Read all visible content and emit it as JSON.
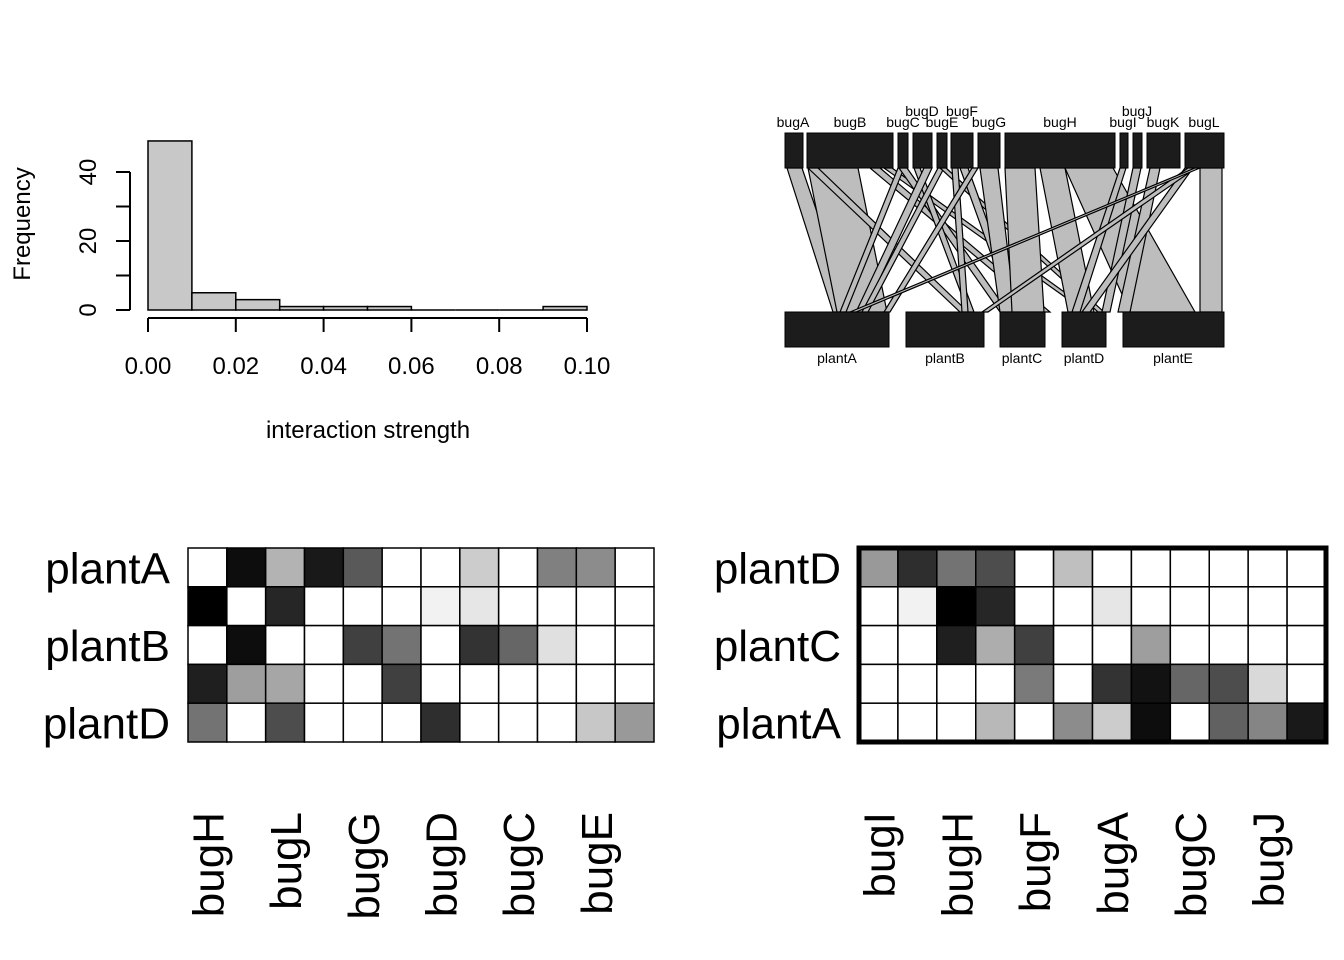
{
  "chart_data": [
    {
      "type": "bar",
      "subtype": "histogram",
      "xlabel": "interaction strength",
      "ylabel": "Frequency",
      "bins": [
        [
          0.0,
          0.01
        ],
        [
          0.01,
          0.02
        ],
        [
          0.02,
          0.03
        ],
        [
          0.03,
          0.04
        ],
        [
          0.04,
          0.05
        ],
        [
          0.05,
          0.06
        ],
        [
          0.06,
          0.07
        ],
        [
          0.07,
          0.08
        ],
        [
          0.08,
          0.09
        ],
        [
          0.09,
          0.1
        ]
      ],
      "values": [
        49,
        5,
        3,
        1,
        1,
        1,
        0,
        0,
        0,
        1
      ],
      "xticks": [
        "0.00",
        "0.02",
        "0.04",
        "0.06",
        "0.08",
        "0.10"
      ],
      "xtick_values": [
        0,
        0.02,
        0.04,
        0.06,
        0.08,
        0.1
      ],
      "yticks": [
        "0",
        "20",
        "40"
      ],
      "ytick_values": [
        0,
        20,
        40
      ],
      "xlim": [
        0,
        0.1
      ],
      "ylim": [
        0,
        40
      ],
      "bar_color": "#c8c8c8"
    },
    {
      "type": "diagram",
      "subtype": "bipartite-web",
      "upper_labels": [
        "bugA",
        "bugB",
        "bugC",
        "bugD",
        "bugE",
        "bugF",
        "bugG",
        "bugH",
        "bugI",
        "bugJ",
        "bugK",
        "bugL"
      ],
      "lower_labels": [
        "plantA",
        "plantB",
        "plantC",
        "plantD",
        "plantE"
      ]
    },
    {
      "type": "heatmap",
      "row_labels": [
        "plantA",
        "plantB",
        "plantD"
      ],
      "col_labels": [
        "bugH",
        "bugL",
        "bugG",
        "bugD",
        "bugC",
        "bugE"
      ],
      "rows": 5,
      "cols": 12,
      "values": [
        [
          0.0,
          0.95,
          0.3,
          0.9,
          0.65,
          0.0,
          0.0,
          0.2,
          0.0,
          0.5,
          0.45,
          0.0
        ],
        [
          1.0,
          0.0,
          0.85,
          0.0,
          0.0,
          0.0,
          0.05,
          0.1,
          0.0,
          0.0,
          0.0,
          0.0
        ],
        [
          0.0,
          0.95,
          0.0,
          0.0,
          0.75,
          0.55,
          0.0,
          0.8,
          0.6,
          0.12,
          0.0,
          0.0
        ],
        [
          0.88,
          0.38,
          0.35,
          0.0,
          0.0,
          0.75,
          0.0,
          0.0,
          0.0,
          0.0,
          0.0,
          0.0
        ],
        [
          0.55,
          0.0,
          0.7,
          0.0,
          0.0,
          0.0,
          0.82,
          0.0,
          0.0,
          0.0,
          0.22,
          0.4
        ]
      ]
    },
    {
      "type": "heatmap",
      "row_labels": [
        "plantD",
        "plantC",
        "plantA"
      ],
      "col_labels": [
        "bugI",
        "bugH",
        "bugF",
        "bugA",
        "bugC",
        "bugJ"
      ],
      "rows": 5,
      "cols": 12,
      "values": [
        [
          0.4,
          0.82,
          0.55,
          0.7,
          0.0,
          0.25,
          0.0,
          0.0,
          0.0,
          0.0,
          0.0,
          0.0
        ],
        [
          0.0,
          0.05,
          1.0,
          0.85,
          0.0,
          0.0,
          0.1,
          0.0,
          0.0,
          0.0,
          0.0,
          0.0
        ],
        [
          0.0,
          0.0,
          0.88,
          0.32,
          0.75,
          0.0,
          0.0,
          0.38,
          0.0,
          0.0,
          0.0,
          0.0
        ],
        [
          0.0,
          0.0,
          0.0,
          0.0,
          0.52,
          0.0,
          0.8,
          0.93,
          0.6,
          0.7,
          0.15,
          0.0
        ],
        [
          0.0,
          0.0,
          0.0,
          0.28,
          0.0,
          0.45,
          0.2,
          0.95,
          0.0,
          0.62,
          0.48,
          0.9
        ]
      ]
    }
  ]
}
